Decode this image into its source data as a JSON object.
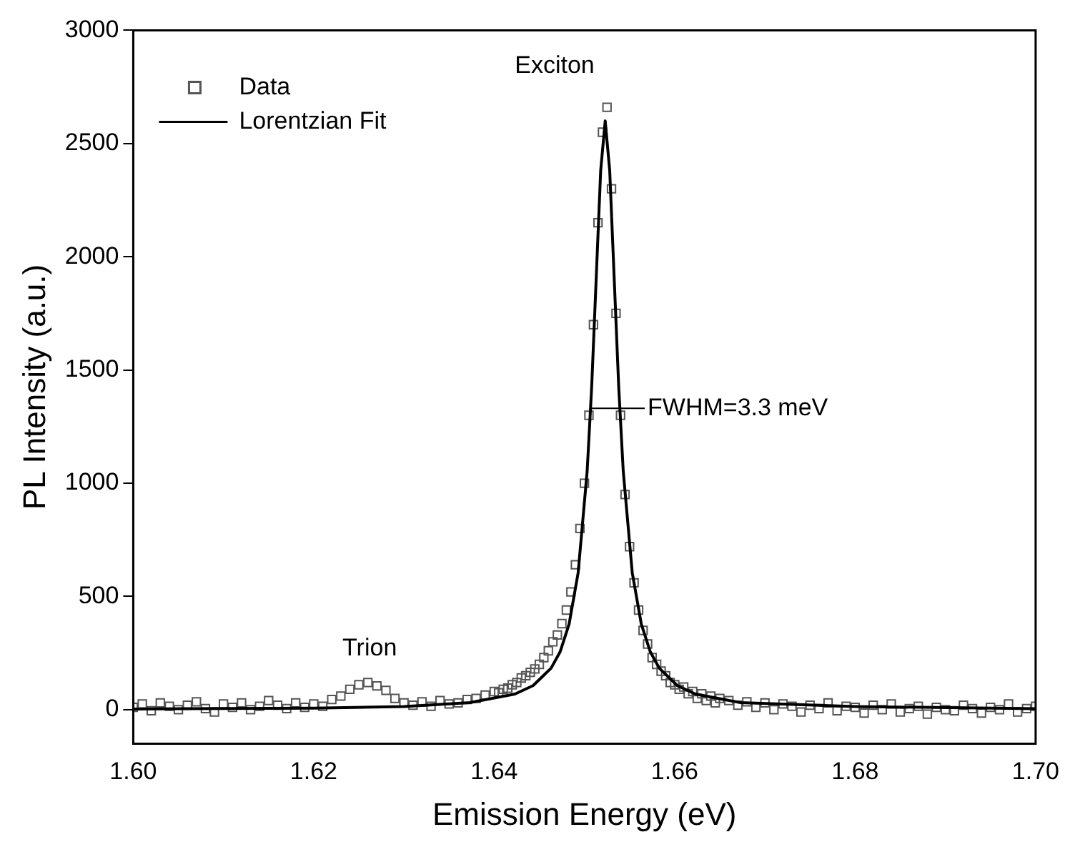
{
  "chart_data": {
    "type": "scatter",
    "xlabel": "Emission Energy (eV)",
    "ylabel": "PL Intensity (a.u.)",
    "xlim": [
      1.6,
      1.7
    ],
    "xticks": [
      {
        "value": 1.6,
        "label": "1.60"
      },
      {
        "value": 1.62,
        "label": "1.62"
      },
      {
        "value": 1.64,
        "label": "1.64"
      },
      {
        "value": 1.66,
        "label": "1.66"
      },
      {
        "value": 1.68,
        "label": "1.68"
      },
      {
        "value": 1.7,
        "label": "1.70"
      }
    ],
    "ylim": [
      -150,
      3000
    ],
    "yticks": [
      0,
      500,
      1000,
      1500,
      2000,
      2500,
      3000
    ],
    "grid": false,
    "legend": "top left",
    "annotations": [
      "Exciton",
      "Trion",
      "FWHM=3.3 meV"
    ],
    "series": [
      {
        "name": "Data",
        "marker": "square",
        "color": "#555555",
        "x": [
          1.6,
          1.601,
          1.602,
          1.603,
          1.604,
          1.605,
          1.606,
          1.607,
          1.608,
          1.609,
          1.61,
          1.611,
          1.612,
          1.613,
          1.614,
          1.615,
          1.616,
          1.617,
          1.618,
          1.619,
          1.62,
          1.621,
          1.622,
          1.623,
          1.624,
          1.625,
          1.626,
          1.627,
          1.628,
          1.629,
          1.63,
          1.631,
          1.632,
          1.633,
          1.634,
          1.635,
          1.636,
          1.637,
          1.638,
          1.639,
          1.64,
          1.6405,
          1.641,
          1.6415,
          1.642,
          1.6425,
          1.643,
          1.6435,
          1.644,
          1.6445,
          1.645,
          1.6455,
          1.646,
          1.6465,
          1.647,
          1.6475,
          1.648,
          1.6485,
          1.649,
          1.6495,
          1.65,
          1.6505,
          1.651,
          1.6515,
          1.652,
          1.6525,
          1.653,
          1.6535,
          1.654,
          1.6545,
          1.655,
          1.6555,
          1.656,
          1.6565,
          1.657,
          1.6575,
          1.658,
          1.6585,
          1.659,
          1.6595,
          1.66,
          1.6605,
          1.661,
          1.6615,
          1.662,
          1.6625,
          1.663,
          1.6635,
          1.664,
          1.6645,
          1.665,
          1.666,
          1.667,
          1.668,
          1.669,
          1.67,
          1.671,
          1.672,
          1.673,
          1.674,
          1.675,
          1.676,
          1.677,
          1.678,
          1.679,
          1.68,
          1.681,
          1.682,
          1.683,
          1.684,
          1.685,
          1.686,
          1.687,
          1.688,
          1.689,
          1.69,
          1.691,
          1.692,
          1.693,
          1.694,
          1.695,
          1.696,
          1.697,
          1.698,
          1.699,
          1.7
        ],
        "values": [
          10,
          25,
          -5,
          30,
          15,
          0,
          20,
          35,
          5,
          -10,
          25,
          10,
          30,
          0,
          15,
          40,
          20,
          5,
          30,
          10,
          25,
          15,
          45,
          60,
          90,
          110,
          120,
          105,
          85,
          50,
          30,
          20,
          35,
          15,
          40,
          25,
          30,
          45,
          50,
          65,
          80,
          75,
          90,
          95,
          110,
          120,
          140,
          150,
          165,
          180,
          200,
          230,
          260,
          300,
          330,
          380,
          440,
          520,
          640,
          800,
          1000,
          1300,
          1700,
          2150,
          2550,
          2660,
          2300,
          1750,
          1300,
          950,
          720,
          560,
          440,
          350,
          290,
          230,
          200,
          170,
          150,
          120,
          110,
          90,
          100,
          70,
          80,
          50,
          70,
          40,
          60,
          30,
          50,
          40,
          20,
          35,
          10,
          30,
          0,
          25,
          15,
          -10,
          20,
          5,
          30,
          -5,
          15,
          10,
          -15,
          20,
          0,
          25,
          -10,
          5,
          15,
          -20,
          10,
          0,
          -5,
          20,
          5,
          -15,
          10,
          0,
          25,
          -10,
          5,
          15
        ]
      },
      {
        "name": "Lorentzian Fit",
        "type": "line",
        "marker": "none",
        "line_style": "solid",
        "color": "#000000",
        "x": [
          1.6,
          1.62,
          1.63,
          1.6373,
          1.6423,
          1.6443,
          1.6463,
          1.6473,
          1.6483,
          1.6493,
          1.6503,
          1.6508,
          1.6513,
          1.6518,
          1.6523,
          1.6528,
          1.6533,
          1.6538,
          1.6543,
          1.6553,
          1.6563,
          1.6573,
          1.6583,
          1.6603,
          1.6623,
          1.6673,
          1.68,
          1.7
        ],
        "values": [
          3,
          7,
          14,
          31,
          69,
          106,
          183,
          255,
          378,
          604,
          1053,
          1424,
          1902,
          2381,
          2600,
          2381,
          1902,
          1424,
          1053,
          604,
          378,
          255,
          183,
          106,
          69,
          31,
          14,
          4
        ]
      }
    ]
  }
}
